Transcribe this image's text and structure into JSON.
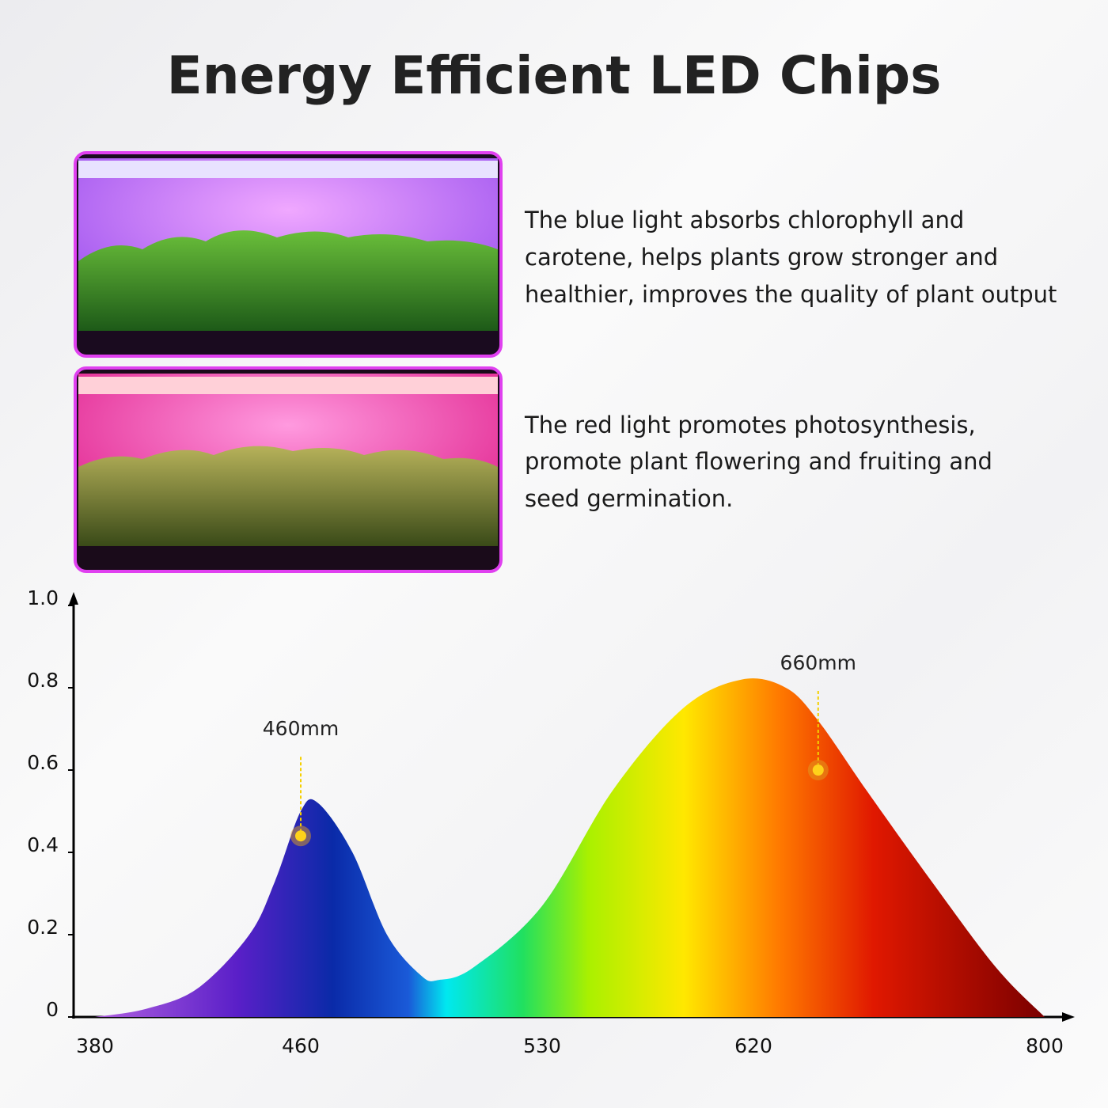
{
  "header": {
    "title": "Energy Efficient LED Chips"
  },
  "descriptions": [
    {
      "lines": [
        "The blue light absorbs chlorophyll and",
        "carotene, helps plants grow stronger and",
        "healthier, improves the quality of plant output"
      ]
    },
    {
      "lines": [
        "The red light promotes photosynthesis,",
        "promote plant flowering and fruiting and",
        "seed germination."
      ]
    }
  ],
  "chart_data": {
    "type": "area",
    "x": [
      380,
      400,
      420,
      440,
      450,
      460,
      465,
      475,
      485,
      495,
      500,
      510,
      530,
      560,
      590,
      615,
      640,
      660,
      690,
      730,
      770,
      800
    ],
    "values": [
      0.0,
      0.02,
      0.07,
      0.2,
      0.33,
      0.5,
      0.52,
      0.4,
      0.2,
      0.1,
      0.09,
      0.12,
      0.27,
      0.55,
      0.75,
      0.82,
      0.8,
      0.72,
      0.55,
      0.33,
      0.12,
      0.0
    ],
    "xlim": [
      380,
      800
    ],
    "xticks": [
      380,
      460,
      530,
      620,
      800
    ],
    "ylim": [
      0,
      1
    ],
    "yticks": [
      0,
      0.2,
      0.4,
      0.6,
      0.8,
      {
        "value": 1,
        "label": "1.0"
      }
    ],
    "annotations": [
      {
        "label": "460mm",
        "x": 460,
        "y": 0.44
      },
      {
        "label": "660mm",
        "x": 660,
        "y": 0.6
      }
    ]
  }
}
